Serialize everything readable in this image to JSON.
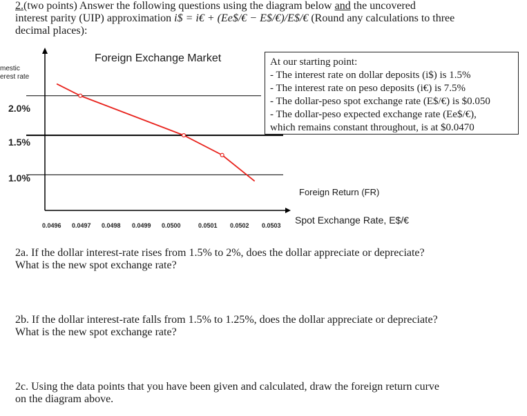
{
  "question": {
    "number": "2.",
    "intro_a": "(two points) Answer the following questions using the diagram below ",
    "and": "and",
    "intro_b": " the uncovered",
    "line2_a": "interest parity (UIP) approximation ",
    "formula": "i$ = i€ + (Ee$/€ − E$/€)/E$/€",
    "line2_b": " (Round any calculations to three",
    "line3": "decimal places):"
  },
  "chart": {
    "title": "Foreign Exchange Market",
    "y_axis_label_line1": "mestic",
    "y_axis_label_line2": "erest rate",
    "foreign_return_label": "Foreign Return (FR)",
    "x_axis_label": "Spot Exchange Rate, E$/€",
    "tick_labels": [
      "0.0496",
      "0.0497",
      "0.0498",
      "0.0499",
      "0.0500",
      "0.0501",
      "0.0502",
      "0.0503"
    ],
    "y_tick_labels": [
      "2.0%",
      "1.5%",
      "1.0%"
    ],
    "colors": {
      "line": "#e8221c",
      "axis": "#000000",
      "grid": "#000000"
    }
  },
  "chart_data": {
    "type": "line",
    "title": "Foreign Exchange Market",
    "xlabel": "Spot Exchange Rate, E$/€",
    "ylabel": "Domestic interest rate",
    "series": [
      {
        "name": "Foreign Return (FR)",
        "x": [
          0.04965,
          0.05,
          0.05013,
          0.05024
        ],
        "y": [
          2.0,
          1.5,
          1.25,
          0.92
        ]
      }
    ],
    "horizontal_lines": [
      2.0,
      1.5,
      1.0
    ],
    "xlim": [
      0.04953,
      0.05036
    ],
    "ylim": [
      0.55,
      2.6
    ]
  },
  "info_box": {
    "lines": [
      "At our starting point:",
      "- The interest rate on dollar deposits (i$) is 1.5%",
      "- The interest rate on peso deposits (i€) is 7.5%",
      "- The dollar-peso spot exchange rate (E$/€) is $0.050",
      "- The dollar-peso expected exchange rate (Ee$/€),",
      "which remains constant throughout, is at $0.0470"
    ]
  },
  "subquestions": {
    "a_line1": "2a. If the dollar interest-rate rises from 1.5% to 2%, does the dollar appreciate or depreciate?",
    "a_line2": "What is the new spot exchange rate?",
    "b_line1": "2b. If the dollar interest-rate falls from 1.5% to 1.25%, does the dollar appreciate or depreciate?",
    "b_line2": "What is the new spot exchange rate?",
    "c_line1": "2c. Using the data points that you have been given and calculated, draw the foreign return curve",
    "c_line2": "on the diagram above."
  }
}
